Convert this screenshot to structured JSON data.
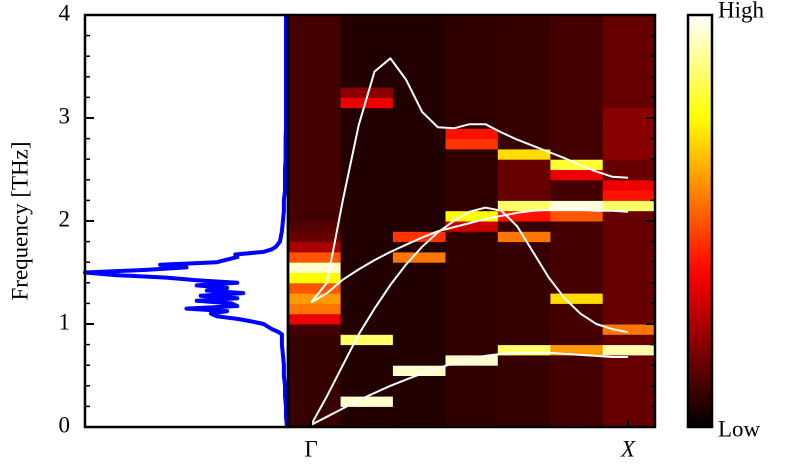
{
  "chart_data": [
    {
      "type": "line",
      "ylabel": "Frequency [THz]",
      "ylim": [
        0,
        4
      ],
      "yticks": [
        0,
        1,
        2,
        3,
        4
      ],
      "yticks_minor": [
        0.2,
        0.4,
        0.6,
        0.8,
        1.2,
        1.4,
        1.6,
        1.8,
        2.2,
        2.4,
        2.6,
        2.8,
        3.2,
        3.4,
        3.6,
        3.8
      ],
      "xlim": [
        1,
        0
      ],
      "color": "#0000ff",
      "y": [
        0,
        0.1,
        0.2,
        0.3,
        0.4,
        0.5,
        0.6,
        0.7,
        0.8,
        0.9,
        0.925,
        0.95,
        0.975,
        1,
        1.025,
        1.05,
        1.075,
        1.1,
        1.125,
        1.15,
        1.175,
        1.2,
        1.225,
        1.25,
        1.275,
        1.3,
        1.325,
        1.35,
        1.375,
        1.4,
        1.425,
        1.45,
        1.475,
        1.5,
        1.525,
        1.55,
        1.575,
        1.6,
        1.625,
        1.65,
        1.675,
        1.7,
        1.725,
        1.75,
        1.775,
        1.8,
        1.9,
        2,
        2.1,
        2.2,
        2.3,
        2.4,
        2.5,
        2.6,
        2.7,
        2.8,
        2.9,
        3,
        3.1,
        3.2,
        3.3,
        3.4,
        3.5,
        3.6,
        3.7,
        3.8,
        3.9,
        4
      ],
      "values": [
        0.005,
        0.01,
        0.01,
        0.015,
        0.015,
        0.02,
        0.02,
        0.025,
        0.03,
        0.03,
        0.05,
        0.08,
        0.1,
        0.12,
        0.18,
        0.25,
        0.35,
        0.38,
        0.3,
        0.5,
        0.25,
        0.28,
        0.45,
        0.25,
        0.43,
        0.22,
        0.4,
        0.3,
        0.45,
        0.25,
        0.45,
        0.6,
        0.85,
        1.0,
        0.7,
        0.5,
        0.63,
        0.35,
        0.3,
        0.25,
        0.26,
        0.12,
        0.08,
        0.06,
        0.05,
        0.04,
        0.03,
        0.025,
        0.02,
        0.02,
        0.015,
        0.015,
        0.015,
        0.012,
        0.012,
        0.012,
        0.01,
        0.01,
        0.01,
        0.01,
        0.01,
        0.01,
        0.01,
        0.01,
        0.01,
        0.01,
        0.01,
        0.01
      ]
    },
    {
      "type": "heatmap",
      "xlim": [
        -0.073,
        1.085
      ],
      "xticks": [
        {
          "value": 0,
          "label": "Γ"
        },
        {
          "value": 1,
          "label": "X"
        }
      ],
      "ylim": [
        0,
        4
      ],
      "yticks": [
        0,
        1,
        2,
        3,
        4
      ],
      "colormap": "hot",
      "colorbar": {
        "high": "High",
        "low": "Low"
      },
      "xbins": [
        -0.073,
        0.093,
        0.258,
        0.424,
        0.589,
        0.755,
        0.92,
        1.085
      ],
      "ybins": [
        0,
        0.1,
        0.2,
        0.3,
        0.4,
        0.5,
        0.6,
        0.7,
        0.8,
        0.9,
        1,
        1.1,
        1.2,
        1.3,
        1.4,
        1.5,
        1.6,
        1.7,
        1.8,
        1.9,
        2,
        2.1,
        2.2,
        2.3,
        2.4,
        2.5,
        2.6,
        2.7,
        2.8,
        2.9,
        3,
        3.1,
        3.2,
        3.3,
        3.4,
        3.5,
        3.6,
        3.7,
        3.8,
        3.9,
        4
      ],
      "values": [
        [
          0.08,
          0.08,
          0.08,
          0.08,
          0.08,
          0.08,
          0.08,
          0.08,
          0.08,
          0.1,
          0.35,
          0.55,
          0.6,
          0.5,
          0.75,
          0.95,
          0.5,
          0.25,
          0.15,
          0.12,
          0.1,
          0.1,
          0.1,
          0.1,
          0.1,
          0.1,
          0.1,
          0.1,
          0.1,
          0.1,
          0.1,
          0.1,
          0.1,
          0.1,
          0.1,
          0.1,
          0.1,
          0.1,
          0.1,
          0.1
        ],
        [
          0.05,
          0.05,
          0.95,
          0.05,
          0.05,
          0.05,
          0.05,
          0.05,
          0.85,
          0.05,
          0.05,
          0.05,
          0.05,
          0.05,
          0.05,
          0.05,
          0.05,
          0.05,
          0.05,
          0.05,
          0.05,
          0.05,
          0.05,
          0.05,
          0.05,
          0.05,
          0.05,
          0.05,
          0.05,
          0.05,
          0.05,
          0.35,
          0.2,
          0.05,
          0.05,
          0.05,
          0.05,
          0.05,
          0.05,
          0.05
        ],
        [
          0.05,
          0.05,
          0.05,
          0.05,
          0.05,
          0.95,
          0.05,
          0.05,
          0.05,
          0.05,
          0.05,
          0.05,
          0.05,
          0.05,
          0.05,
          0.05,
          0.55,
          0.05,
          0.45,
          0.05,
          0.05,
          0.05,
          0.05,
          0.05,
          0.05,
          0.05,
          0.05,
          0.05,
          0.05,
          0.05,
          0.05,
          0.05,
          0.05,
          0.05,
          0.05,
          0.05,
          0.05,
          0.05,
          0.05,
          0.05
        ],
        [
          0.07,
          0.07,
          0.07,
          0.07,
          0.07,
          0.07,
          0.95,
          0.07,
          0.07,
          0.07,
          0.07,
          0.07,
          0.07,
          0.07,
          0.07,
          0.07,
          0.07,
          0.07,
          0.07,
          0.3,
          0.75,
          0.07,
          0.07,
          0.07,
          0.07,
          0.07,
          0.07,
          0.45,
          0.4,
          0.07,
          0.07,
          0.07,
          0.07,
          0.07,
          0.07,
          0.07,
          0.07,
          0.07,
          0.07,
          0.07
        ],
        [
          0.08,
          0.08,
          0.08,
          0.08,
          0.08,
          0.08,
          0.08,
          0.85,
          0.08,
          0.08,
          0.08,
          0.08,
          0.08,
          0.08,
          0.08,
          0.08,
          0.08,
          0.08,
          0.55,
          0.08,
          0.4,
          0.85,
          0.15,
          0.15,
          0.15,
          0.15,
          0.7,
          0.08,
          0.08,
          0.08,
          0.08,
          0.08,
          0.08,
          0.08,
          0.08,
          0.08,
          0.08,
          0.08,
          0.08,
          0.08
        ],
        [
          0.1,
          0.1,
          0.1,
          0.1,
          0.1,
          0.1,
          0.1,
          0.6,
          0.1,
          0.1,
          0.1,
          0.1,
          0.7,
          0.1,
          0.1,
          0.1,
          0.1,
          0.1,
          0.1,
          0.1,
          0.5,
          0.97,
          0.1,
          0.1,
          0.35,
          0.8,
          0.1,
          0.1,
          0.1,
          0.1,
          0.1,
          0.1,
          0.1,
          0.1,
          0.1,
          0.1,
          0.1,
          0.1,
          0.1,
          0.1
        ],
        [
          0.15,
          0.15,
          0.15,
          0.15,
          0.15,
          0.15,
          0.15,
          0.92,
          0.15,
          0.55,
          0.15,
          0.15,
          0.15,
          0.15,
          0.15,
          0.15,
          0.15,
          0.15,
          0.15,
          0.15,
          0.15,
          0.85,
          0.4,
          0.35,
          0.15,
          0.15,
          0.2,
          0.2,
          0.2,
          0.2,
          0.2,
          0.15,
          0.15,
          0.15,
          0.15,
          0.15,
          0.15,
          0.15,
          0.15,
          0.15
        ]
      ],
      "lines": {
        "x": [
          0,
          0.05,
          0.1,
          0.15,
          0.2,
          0.25,
          0.3,
          0.35,
          0.4,
          0.45,
          0.5,
          0.55,
          0.6,
          0.65,
          0.7,
          0.75,
          0.8,
          0.85,
          0.9,
          0.95,
          1
        ],
        "series": [
          {
            "color": "#ffffff",
            "values": [
              1.21,
              1.4,
              2.2,
              2.93,
              3.45,
              3.58,
              3.37,
              3.06,
              2.91,
              2.9,
              2.94,
              2.94,
              2.86,
              2.79,
              2.73,
              2.67,
              2.61,
              2.54,
              2.48,
              2.43,
              2.42
            ]
          },
          {
            "color": "#ffffff",
            "values": [
              1.21,
              1.3,
              1.43,
              1.53,
              1.62,
              1.7,
              1.77,
              1.84,
              1.9,
              1.94,
              1.98,
              2.02,
              2.05,
              2.08,
              2.1,
              2.11,
              2.11,
              2.11,
              2.1,
              2.1,
              2.09
            ]
          },
          {
            "color": "#ffffff",
            "values": [
              0.02,
              0.3,
              0.6,
              0.9,
              1.15,
              1.38,
              1.58,
              1.75,
              1.89,
              2.0,
              2.09,
              2.13,
              2.1,
              1.95,
              1.7,
              1.45,
              1.25,
              1.1,
              1.0,
              0.95,
              0.92
            ]
          },
          {
            "color": "#ffffff",
            "values": [
              0.02,
              0.1,
              0.18,
              0.26,
              0.33,
              0.4,
              0.46,
              0.52,
              0.57,
              0.62,
              0.66,
              0.69,
              0.71,
              0.72,
              0.72,
              0.72,
              0.71,
              0.7,
              0.69,
              0.68,
              0.68
            ]
          }
        ]
      }
    }
  ]
}
